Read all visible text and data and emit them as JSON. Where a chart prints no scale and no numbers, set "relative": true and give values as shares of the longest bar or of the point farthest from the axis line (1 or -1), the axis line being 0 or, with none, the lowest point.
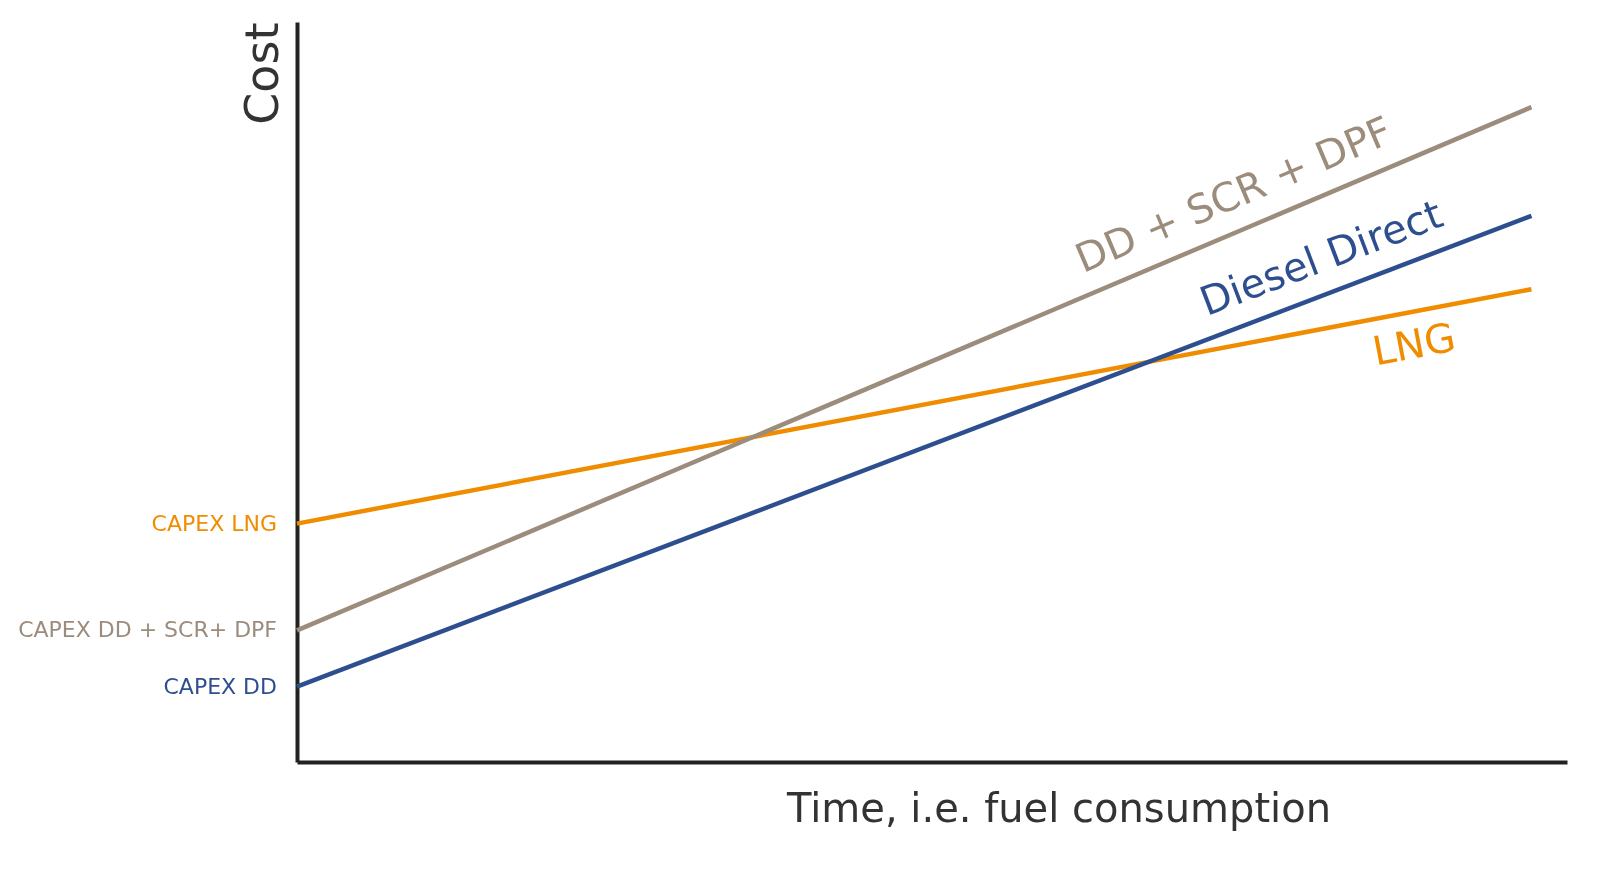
{
  "chart_data": {
    "type": "line",
    "relative": true,
    "xlabel": "Time, i.e. fuel consumption",
    "ylabel": "Cost",
    "categories": [
      null,
      null
    ],
    "grid": false,
    "marker": "none",
    "line_style": "solid",
    "series": [
      {
        "name": "LNG",
        "color": "#f08c00",
        "values": [
          0.364,
          0.722
        ]
      },
      {
        "name": "DD + SCR + DPF",
        "color": "#9c8c7c",
        "values": [
          0.201,
          1
        ]
      },
      {
        "name": "Diesel Direct",
        "color": "#2e4f8f",
        "values": [
          0.115,
          0.834
        ]
      }
    ],
    "annotations": [
      "CAPEX LNG",
      "CAPEX DD + SCR+ DPF",
      "CAPEX DD"
    ]
  }
}
